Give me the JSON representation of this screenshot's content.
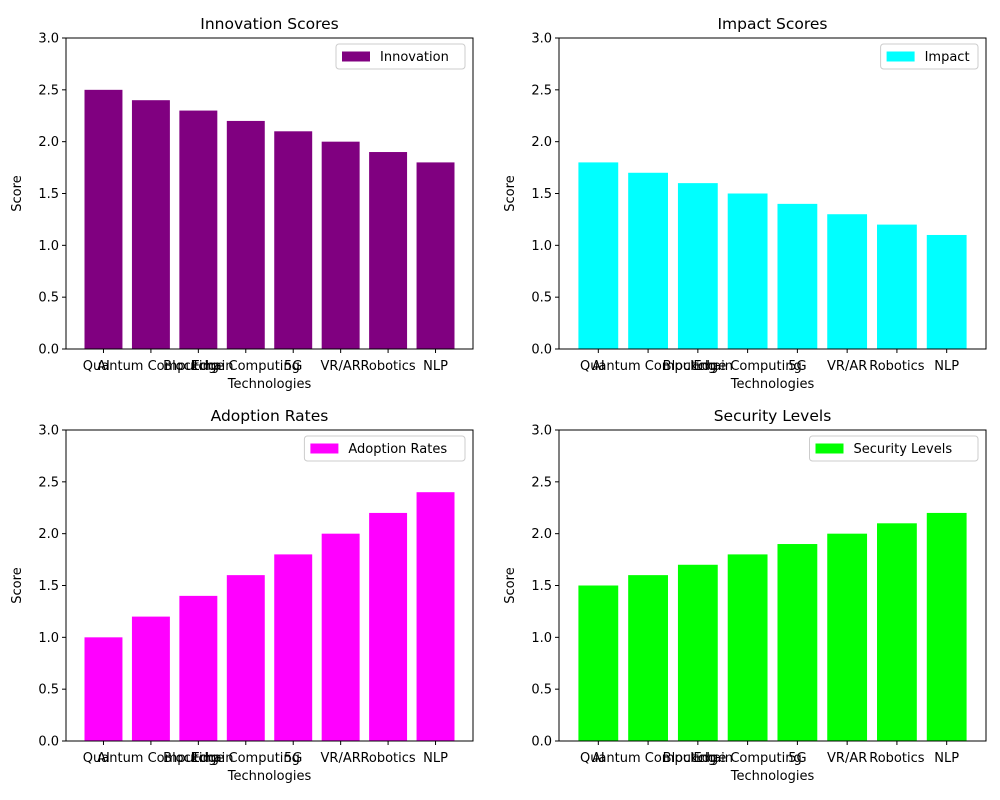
{
  "chart_data": [
    {
      "type": "bar",
      "title": "Innovation Scores",
      "xlabel": "Technologies",
      "ylabel": "Score",
      "categories": [
        "AI",
        "Quantum Computing",
        "Blockchain",
        "Edge Computing",
        "5G",
        "VR/AR",
        "Robotics",
        "NLP"
      ],
      "series": [
        {
          "name": "Innovation",
          "values": [
            2.5,
            2.4,
            2.3,
            2.2,
            2.1,
            2.0,
            1.9,
            1.8
          ]
        }
      ],
      "ylim": [
        0,
        3
      ],
      "yticks": [
        "0.0",
        "0.5",
        "1.0",
        "1.5",
        "2.0",
        "2.5",
        "3.0"
      ],
      "color": "#800080",
      "legend_position": "top-right",
      "grid": false
    },
    {
      "type": "bar",
      "title": "Impact Scores",
      "xlabel": "Technologies",
      "ylabel": "Score",
      "categories": [
        "AI",
        "Quantum Computing",
        "Blockchain",
        "Edge Computing",
        "5G",
        "VR/AR",
        "Robotics",
        "NLP"
      ],
      "series": [
        {
          "name": "Impact",
          "values": [
            1.8,
            1.7,
            1.6,
            1.5,
            1.4,
            1.3,
            1.2,
            1.1
          ]
        }
      ],
      "ylim": [
        0,
        3
      ],
      "yticks": [
        "0.0",
        "0.5",
        "1.0",
        "1.5",
        "2.0",
        "2.5",
        "3.0"
      ],
      "color": "#00ffff",
      "legend_position": "top-right",
      "grid": false
    },
    {
      "type": "bar",
      "title": "Adoption Rates",
      "xlabel": "Technologies",
      "ylabel": "Score",
      "categories": [
        "AI",
        "Quantum Computing",
        "Blockchain",
        "Edge Computing",
        "5G",
        "VR/AR",
        "Robotics",
        "NLP"
      ],
      "series": [
        {
          "name": "Adoption Rates",
          "values": [
            1.0,
            1.2,
            1.4,
            1.6,
            1.8,
            2.0,
            2.2,
            2.4
          ]
        }
      ],
      "ylim": [
        0,
        3
      ],
      "yticks": [
        "0.0",
        "0.5",
        "1.0",
        "1.5",
        "2.0",
        "2.5",
        "3.0"
      ],
      "color": "#ff00ff",
      "legend_position": "top-right",
      "grid": false
    },
    {
      "type": "bar",
      "title": "Security Levels",
      "xlabel": "Technologies",
      "ylabel": "Score",
      "categories": [
        "AI",
        "Quantum Computing",
        "Blockchain",
        "Edge Computing",
        "5G",
        "VR/AR",
        "Robotics",
        "NLP"
      ],
      "series": [
        {
          "name": "Security Levels",
          "values": [
            1.5,
            1.6,
            1.7,
            1.8,
            1.9,
            2.0,
            2.1,
            2.2
          ]
        }
      ],
      "ylim": [
        0,
        3
      ],
      "yticks": [
        "0.0",
        "0.5",
        "1.0",
        "1.5",
        "2.0",
        "2.5",
        "3.0"
      ],
      "color": "#00ff00",
      "legend_position": "top-right",
      "grid": false
    }
  ]
}
